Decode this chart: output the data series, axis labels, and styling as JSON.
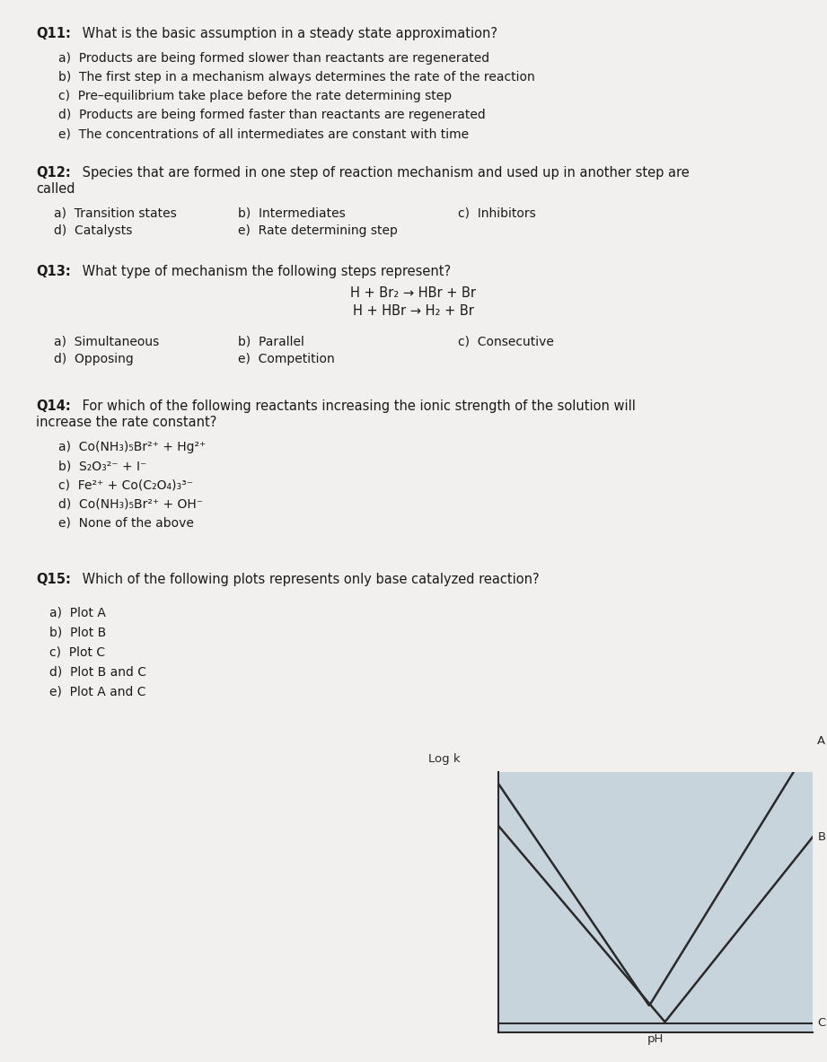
{
  "page_bg": "#f2f0ee",
  "text_color": "#1a1a1a",
  "q11_title_bold": "Q11:",
  "q11_title_rest": " What is the basic assumption in a steady state approximation?",
  "q11_options": [
    "a)  Products are being formed slower than reactants are regenerated",
    "b)  The first step in a mechanism always determines the rate of the reaction",
    "c)  Pre–equilibrium take place before the rate determining step",
    "d)  Products are being formed faster than reactants are regenerated",
    "e)  The concentrations of all intermediates are constant with time"
  ],
  "q12_title_bold": "Q12:",
  "q12_title_rest": " Species that are formed in one step of reaction mechanism and used up in another step are\ncalled",
  "q12_col1": [
    "a)  Transition states",
    "d)  Catalysts"
  ],
  "q12_col2": [
    "b)  Intermediates",
    "e)  Rate determining step"
  ],
  "q12_col3": [
    "c)  Inhibitors"
  ],
  "q13_title_bold": "Q13:",
  "q13_title_rest": " What type of mechanism the following steps represent?",
  "q13_rxn1": "H + Br₂ → HBr + Br",
  "q13_rxn2": "H + HBr → H₂ + Br",
  "q13_col1": [
    "a)  Simultaneous",
    "d)  Opposing"
  ],
  "q13_col2": [
    "b)  Parallel",
    "e)  Competition"
  ],
  "q13_col3": [
    "c)  Consecutive"
  ],
  "q14_title_bold": "Q14:",
  "q14_title_rest": " For which of the following reactants increasing the ionic strength of the solution will\nincrease the rate constant?",
  "q14_options": [
    "a)  Co(NH₃)₅Br²⁺ + Hg²⁺",
    "b)  S₂O₃²⁻ + I⁻",
    "c)  Fe²⁺ + Co(C₂O₄)₃³⁻",
    "d)  Co(NH₃)₅Br²⁺ + OH⁻",
    "e)  None of the above"
  ],
  "q15_title_bold": "Q15:",
  "q15_title_rest": " Which of the following plots represents only base catalyzed reaction?",
  "q15_col1": [
    "a)  Plot A",
    "b)  Plot B",
    "c)  Plot C",
    "d)  Plot B and C",
    "e)  Plot A and C"
  ],
  "plot_bg": "#c8d4dc",
  "plot_line_color": "#2a2a2a",
  "plot_ylabel": "Log k",
  "plot_xlabel": "pH",
  "font_size_q": 10.5,
  "font_size_opt": 10.0
}
